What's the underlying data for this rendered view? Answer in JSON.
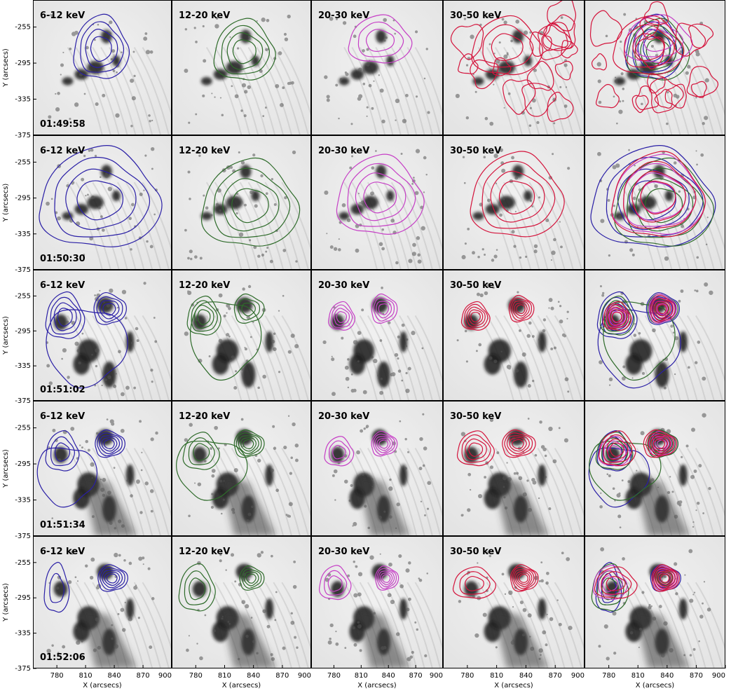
{
  "chart_data": {
    "type": "contour-image-grid",
    "rows": 5,
    "columns": 5,
    "column_labels": [
      "6-12 keV",
      "12-20 keV",
      "20-30 keV",
      "30-50 keV",
      ""
    ],
    "row_times": [
      "01:49:58",
      "01:50:30",
      "01:51:02",
      "01:51:34",
      "01:52:06"
    ],
    "xlabel": "X (arcsecs)",
    "ylabel": "Y (arcsecs)",
    "x_ticks": [
      "780",
      "810",
      "840",
      "870",
      "900"
    ],
    "y_ticks": [
      "-255",
      "-295",
      "-335",
      "-375"
    ],
    "xlim": [
      755,
      900
    ],
    "ylim": [
      -375,
      -225
    ],
    "colors": {
      "6-12 keV": "#2a1fa6",
      "12-20 keV": "#2e6b2a",
      "20-30 keV": "#c63fc6",
      "30-50 keV": "#d4143c"
    },
    "background": "grayscale EUV image (inverted)",
    "grid": false,
    "legend": "none"
  }
}
